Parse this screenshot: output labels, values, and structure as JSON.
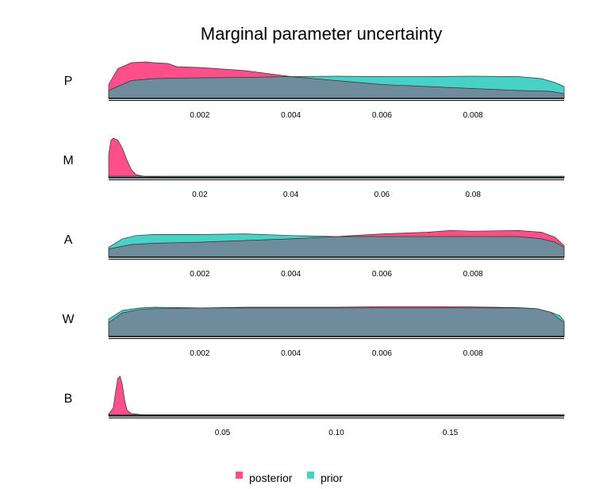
{
  "title": "Marginal parameter uncertainty",
  "colors": {
    "posterior": "#ff4f8b",
    "prior": "#48d1c6",
    "overlap": "#6e8c9c",
    "axis": "#000000"
  },
  "legend": [
    {
      "key": "posterior",
      "label": "posterior",
      "color": "#ff4f8b"
    },
    {
      "key": "prior",
      "label": "prior",
      "color": "#48d1c6"
    }
  ],
  "chart_data": [
    {
      "type": "area",
      "panel": "P",
      "xlim": [
        0.0,
        0.01
      ],
      "ylim": [
        0,
        1
      ],
      "xticks": [
        {
          "value": 0.002,
          "label": "0.002"
        },
        {
          "value": 0.004,
          "label": "0.004"
        },
        {
          "value": 0.006,
          "label": "0.006"
        },
        {
          "value": 0.008,
          "label": "0.008"
        }
      ],
      "series": [
        {
          "name": "posterior",
          "x": [
            0.0,
            0.0002,
            0.0005,
            0.0008,
            0.001,
            0.0013,
            0.0015,
            0.002,
            0.003,
            0.004,
            0.005,
            0.006,
            0.007,
            0.008,
            0.009,
            0.0097,
            0.01
          ],
          "y": [
            0.35,
            0.75,
            0.9,
            0.92,
            0.9,
            0.88,
            0.8,
            0.78,
            0.7,
            0.55,
            0.45,
            0.35,
            0.3,
            0.25,
            0.2,
            0.18,
            0.12
          ]
        },
        {
          "name": "prior",
          "x": [
            0.0,
            0.0005,
            0.001,
            0.002,
            0.003,
            0.004,
            0.005,
            0.006,
            0.007,
            0.008,
            0.009,
            0.0095,
            0.0098,
            0.01
          ],
          "y": [
            0.2,
            0.45,
            0.5,
            0.52,
            0.53,
            0.55,
            0.56,
            0.55,
            0.55,
            0.56,
            0.55,
            0.5,
            0.4,
            0.3
          ]
        }
      ]
    },
    {
      "type": "area",
      "panel": "M",
      "xlim": [
        0.0,
        0.1
      ],
      "ylim": [
        0,
        1
      ],
      "xticks": [
        {
          "value": 0.02,
          "label": "0.02"
        },
        {
          "value": 0.04,
          "label": "0.04"
        },
        {
          "value": 0.06,
          "label": "0.06"
        },
        {
          "value": 0.08,
          "label": "0.08"
        }
      ],
      "series": [
        {
          "name": "posterior",
          "x": [
            0.0,
            0.0005,
            0.001,
            0.002,
            0.003,
            0.004,
            0.005,
            0.006,
            0.008,
            0.012,
            0.05,
            0.1
          ],
          "y": [
            0.6,
            0.95,
            1.0,
            0.95,
            0.75,
            0.45,
            0.2,
            0.08,
            0.03,
            0.02,
            0.02,
            0.02
          ]
        },
        {
          "name": "prior",
          "x": [
            0.0,
            0.1
          ],
          "y": [
            0.04,
            0.04
          ]
        }
      ]
    },
    {
      "type": "area",
      "panel": "A",
      "xlim": [
        0.0,
        0.01
      ],
      "ylim": [
        0,
        1
      ],
      "xticks": [
        {
          "value": 0.002,
          "label": "0.002"
        },
        {
          "value": 0.004,
          "label": "0.004"
        },
        {
          "value": 0.006,
          "label": "0.006"
        },
        {
          "value": 0.008,
          "label": "0.008"
        }
      ],
      "series": [
        {
          "name": "posterior",
          "x": [
            0.0,
            0.0005,
            0.001,
            0.002,
            0.003,
            0.004,
            0.005,
            0.006,
            0.007,
            0.0075,
            0.008,
            0.009,
            0.0095,
            0.0098,
            0.01
          ],
          "y": [
            0.25,
            0.38,
            0.42,
            0.45,
            0.5,
            0.55,
            0.62,
            0.7,
            0.75,
            0.8,
            0.78,
            0.8,
            0.75,
            0.6,
            0.35
          ]
        },
        {
          "name": "prior",
          "x": [
            0.0,
            0.0003,
            0.0006,
            0.001,
            0.002,
            0.003,
            0.004,
            0.005,
            0.006,
            0.007,
            0.008,
            0.009,
            0.0095,
            0.0098,
            0.01
          ],
          "y": [
            0.3,
            0.55,
            0.65,
            0.68,
            0.68,
            0.7,
            0.65,
            0.62,
            0.62,
            0.62,
            0.62,
            0.62,
            0.55,
            0.45,
            0.3
          ]
        }
      ]
    },
    {
      "type": "area",
      "panel": "W",
      "xlim": [
        0.0,
        0.01
      ],
      "ylim": [
        0,
        1
      ],
      "xticks": [
        {
          "value": 0.002,
          "label": "0.002"
        },
        {
          "value": 0.004,
          "label": "0.004"
        },
        {
          "value": 0.006,
          "label": "0.006"
        },
        {
          "value": 0.008,
          "label": "0.008"
        }
      ],
      "series": [
        {
          "name": "posterior",
          "x": [
            0.0,
            0.0003,
            0.0007,
            0.001,
            0.002,
            0.003,
            0.004,
            0.005,
            0.006,
            0.007,
            0.008,
            0.009,
            0.0094,
            0.0097,
            0.0099,
            0.01
          ],
          "y": [
            0.4,
            0.68,
            0.78,
            0.8,
            0.82,
            0.84,
            0.84,
            0.84,
            0.86,
            0.86,
            0.85,
            0.83,
            0.8,
            0.7,
            0.5,
            0.4
          ]
        },
        {
          "name": "prior",
          "x": [
            0.0,
            0.0003,
            0.0007,
            0.001,
            0.002,
            0.003,
            0.004,
            0.005,
            0.006,
            0.007,
            0.008,
            0.009,
            0.0094,
            0.0097,
            0.0099,
            0.01
          ],
          "y": [
            0.5,
            0.75,
            0.82,
            0.84,
            0.82,
            0.82,
            0.82,
            0.82,
            0.82,
            0.82,
            0.82,
            0.82,
            0.8,
            0.7,
            0.6,
            0.45
          ]
        }
      ]
    },
    {
      "type": "area",
      "panel": "B",
      "xlim": [
        0.0,
        0.2
      ],
      "ylim": [
        0,
        1
      ],
      "xticks": [
        {
          "value": 0.05,
          "label": "0.05"
        },
        {
          "value": 0.1,
          "label": "0.10"
        },
        {
          "value": 0.15,
          "label": "0.15"
        }
      ],
      "series": [
        {
          "name": "posterior",
          "x": [
            0.0,
            0.002,
            0.003,
            0.004,
            0.005,
            0.006,
            0.007,
            0.008,
            0.01,
            0.015,
            0.05,
            0.2
          ],
          "y": [
            0.05,
            0.2,
            0.6,
            0.95,
            1.0,
            0.8,
            0.4,
            0.15,
            0.06,
            0.03,
            0.03,
            0.03
          ]
        },
        {
          "name": "prior",
          "x": [
            0.0,
            0.2
          ],
          "y": [
            0.03,
            0.03
          ]
        }
      ]
    }
  ]
}
